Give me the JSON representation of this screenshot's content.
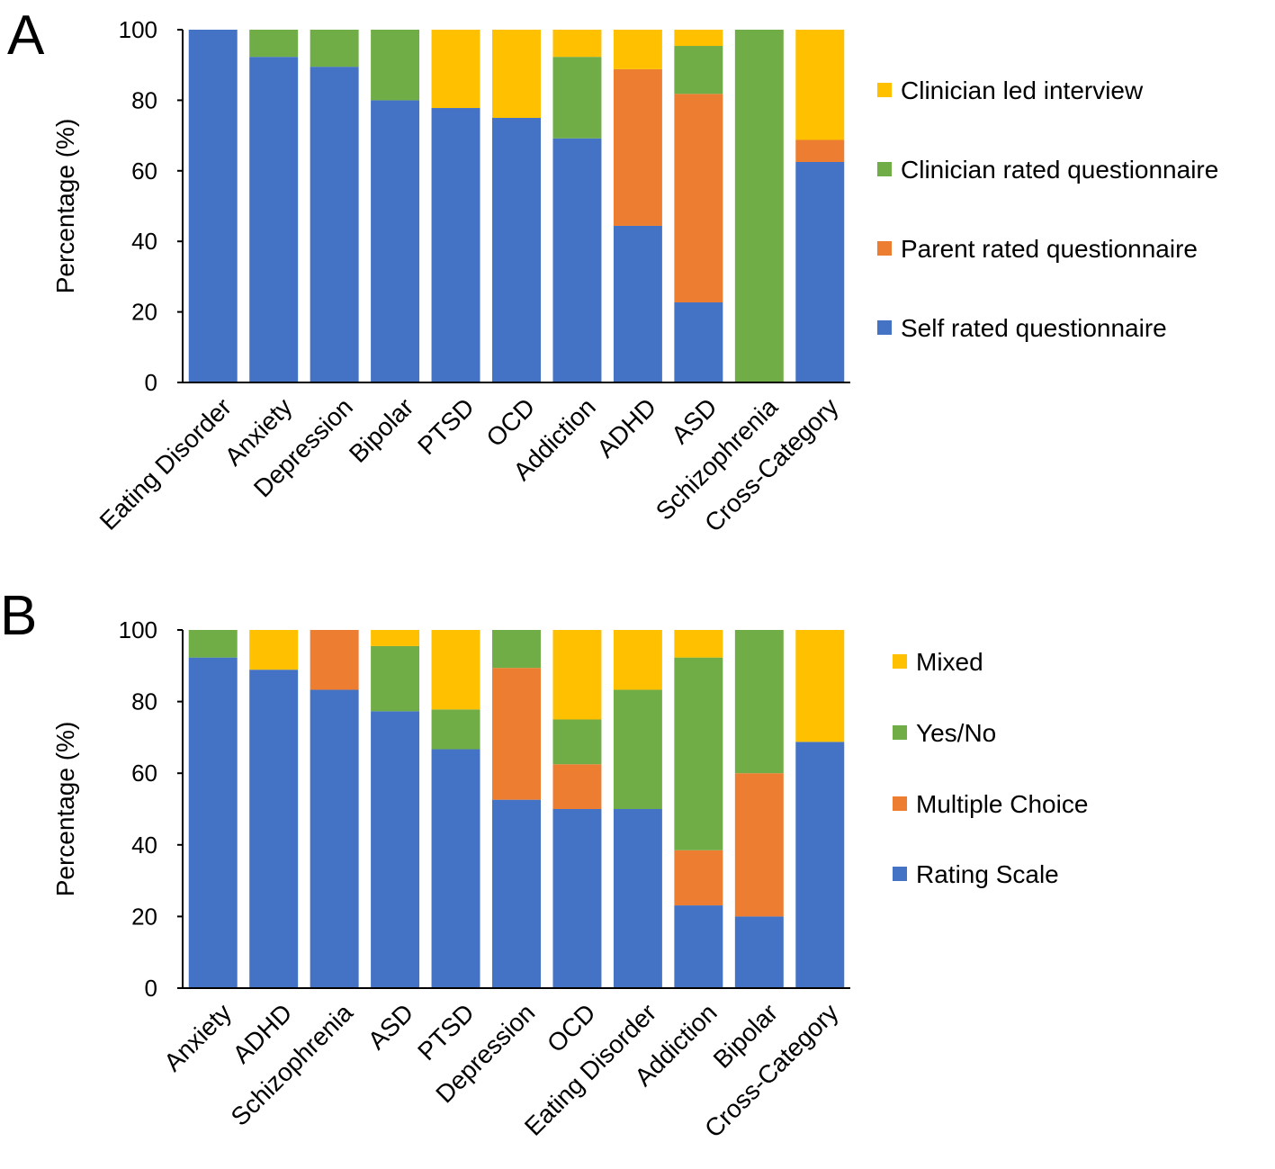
{
  "chart_data": [
    {
      "type": "bar",
      "stacked": true,
      "panel_label": "A",
      "title": "",
      "xlabel": "",
      "ylabel": "Percentage (%)",
      "ylim": [
        0,
        100
      ],
      "yticks": [
        0,
        20,
        40,
        60,
        80,
        100
      ],
      "grid": false,
      "legend_position": "right",
      "categories": [
        "Eating Disorder",
        "Anxiety",
        "Depression",
        "Bipolar",
        "PTSD",
        "OCD",
        "Addiction",
        "ADHD",
        "ASD",
        "Schizophrenia",
        "Cross-Category"
      ],
      "series": [
        {
          "name": "Self rated questionnaire",
          "color": "#4472C4",
          "values": [
            100,
            92.3,
            89.5,
            80,
            77.8,
            75,
            69.2,
            44.4,
            22.7,
            0,
            62.5
          ]
        },
        {
          "name": "Parent rated questionnaire",
          "color": "#ED7D31",
          "values": [
            0,
            0,
            0,
            0,
            0,
            0,
            0,
            44.4,
            59.1,
            0,
            6.25
          ]
        },
        {
          "name": "Clinician rated questionnaire",
          "color": "#70AD47",
          "values": [
            0,
            7.7,
            10.5,
            20,
            0,
            0,
            23.1,
            0,
            13.6,
            100,
            0
          ]
        },
        {
          "name": "Clinician led interview",
          "color": "#FFC000",
          "values": [
            0,
            0,
            0,
            0,
            22.2,
            25,
            7.7,
            11.2,
            4.6,
            0,
            31.25
          ]
        }
      ]
    },
    {
      "type": "bar",
      "stacked": true,
      "panel_label": "B",
      "title": "",
      "xlabel": "",
      "ylabel": "Percentage (%)",
      "ylim": [
        0,
        100
      ],
      "yticks": [
        0,
        20,
        40,
        60,
        80,
        100
      ],
      "grid": false,
      "legend_position": "right",
      "categories": [
        "Anxiety",
        "ADHD",
        "Schizophrenia",
        "ASD",
        "PTSD",
        "Depression",
        "OCD",
        "Eating Disorder",
        "Addiction",
        "Bipolar",
        "Cross-Category"
      ],
      "series": [
        {
          "name": "Rating Scale",
          "color": "#4472C4",
          "values": [
            92.3,
            88.9,
            83.3,
            77.3,
            66.7,
            52.6,
            50,
            50,
            23.1,
            20,
            68.75
          ]
        },
        {
          "name": "Multiple Choice",
          "color": "#ED7D31",
          "values": [
            0,
            0,
            16.7,
            0,
            0,
            36.8,
            12.5,
            0,
            15.4,
            40,
            0
          ]
        },
        {
          "name": "Yes/No",
          "color": "#70AD47",
          "values": [
            7.7,
            0,
            0,
            18.2,
            11.1,
            10.6,
            12.5,
            33.3,
            53.8,
            40,
            0
          ]
        },
        {
          "name": "Mixed",
          "color": "#FFC000",
          "values": [
            0,
            11.1,
            0,
            4.5,
            22.2,
            0,
            25,
            16.7,
            7.7,
            0,
            31.25
          ]
        }
      ]
    }
  ]
}
